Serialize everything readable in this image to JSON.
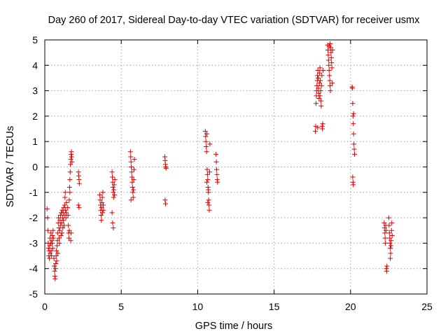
{
  "chart_data": {
    "type": "scatter",
    "title": "Day 260 of 2017, Sidereal Day-to-day VTEC variation (SDTVAR) for receiver usmx",
    "xlabel": "GPS time / hours",
    "ylabel": "SDTVAR / TECUs",
    "xlim": [
      0,
      25
    ],
    "ylim": [
      -5,
      5
    ],
    "xticks": [
      0,
      5,
      10,
      15,
      20,
      25
    ],
    "yticks": [
      -5,
      -4,
      -3,
      -2,
      -1,
      0,
      1,
      2,
      3,
      4,
      5
    ],
    "xtick_labels": [
      "0",
      "5",
      "10",
      "15",
      "20",
      "25"
    ],
    "ytick_labels": [
      "-5",
      "-4",
      "-3",
      "-2",
      "-1",
      "0",
      "1",
      "2",
      "3",
      "4",
      "5"
    ],
    "grid": true,
    "marker": "+",
    "color": "#e00000",
    "series": [
      {
        "name": "SDTVAR",
        "points": [
          [
            0.15,
            -1.65
          ],
          [
            0.18,
            -2.0
          ],
          [
            0.2,
            -2.5
          ],
          [
            0.22,
            -3.0
          ],
          [
            0.24,
            -3.2
          ],
          [
            0.26,
            -3.5
          ],
          [
            0.28,
            -3.3
          ],
          [
            0.3,
            -3.6
          ],
          [
            0.32,
            -3.1
          ],
          [
            0.34,
            -2.8
          ],
          [
            0.36,
            -3.4
          ],
          [
            0.38,
            -3.0
          ],
          [
            0.4,
            -2.6
          ],
          [
            0.42,
            -3.3
          ],
          [
            0.44,
            -3.5
          ],
          [
            0.46,
            -2.9
          ],
          [
            0.48,
            -3.0
          ],
          [
            0.5,
            -2.7
          ],
          [
            0.52,
            -3.2
          ],
          [
            0.54,
            -2.5
          ],
          [
            0.56,
            -2.8
          ],
          [
            0.6,
            -3.6
          ],
          [
            0.62,
            -3.9
          ],
          [
            0.64,
            -4.1
          ],
          [
            0.66,
            -4.3
          ],
          [
            0.68,
            -4.4
          ],
          [
            0.7,
            -4.0
          ],
          [
            0.72,
            -3.8
          ],
          [
            0.74,
            -3.5
          ],
          [
            0.76,
            -3.3
          ],
          [
            0.78,
            -3.7
          ],
          [
            0.8,
            -3.1
          ],
          [
            0.82,
            -2.9
          ],
          [
            0.84,
            -2.6
          ],
          [
            0.86,
            -3.4
          ],
          [
            0.88,
            -2.2
          ],
          [
            0.9,
            -2.0
          ],
          [
            0.92,
            -2.4
          ],
          [
            0.94,
            -2.8
          ],
          [
            0.96,
            -3.0
          ],
          [
            0.98,
            -2.5
          ],
          [
            1.0,
            -2.1
          ],
          [
            1.02,
            -1.9
          ],
          [
            1.04,
            -2.3
          ],
          [
            1.06,
            -2.7
          ],
          [
            1.08,
            -1.8
          ],
          [
            1.1,
            -2.2
          ],
          [
            1.12,
            -2.6
          ],
          [
            1.14,
            -1.7
          ],
          [
            1.16,
            -2.0
          ],
          [
            1.18,
            -2.4
          ],
          [
            1.2,
            -1.8
          ],
          [
            1.22,
            -2.1
          ],
          [
            1.24,
            -1.6
          ],
          [
            1.26,
            -2.3
          ],
          [
            1.28,
            -1.9
          ],
          [
            1.3,
            -1.5
          ],
          [
            1.32,
            -1.2
          ],
          [
            1.34,
            -1.0
          ],
          [
            1.36,
            -1.7
          ],
          [
            1.38,
            -2.0
          ],
          [
            1.4,
            -1.8
          ],
          [
            1.42,
            -1.4
          ],
          [
            1.5,
            -1.6
          ],
          [
            1.52,
            -1.9
          ],
          [
            1.54,
            -2.3
          ],
          [
            1.56,
            -2.6
          ],
          [
            1.58,
            -2.8
          ],
          [
            1.6,
            -2.5
          ],
          [
            1.62,
            -0.8
          ],
          [
            1.64,
            -0.5
          ],
          [
            1.66,
            -0.2
          ],
          [
            1.68,
            0.1
          ],
          [
            1.7,
            0.3
          ],
          [
            1.72,
            0.5
          ],
          [
            1.74,
            0.6
          ],
          [
            1.76,
            0.4
          ],
          [
            1.78,
            0.2
          ],
          [
            1.6,
            -1.3
          ],
          [
            1.64,
            -1.0
          ],
          [
            1.7,
            -2.9
          ],
          [
            1.72,
            -2.6
          ],
          [
            2.2,
            -0.2
          ],
          [
            2.22,
            -0.35
          ],
          [
            2.24,
            -0.5
          ],
          [
            2.26,
            -0.65
          ],
          [
            2.2,
            -1.5
          ],
          [
            2.24,
            -1.6
          ],
          [
            3.6,
            -1.1
          ],
          [
            3.62,
            -1.3
          ],
          [
            3.64,
            -1.5
          ],
          [
            3.66,
            -1.7
          ],
          [
            3.68,
            -1.9
          ],
          [
            3.7,
            -2.1
          ],
          [
            3.72,
            -1.6
          ],
          [
            3.74,
            -1.4
          ],
          [
            3.76,
            -1.2
          ],
          [
            3.78,
            -1.8
          ],
          [
            3.8,
            -1.0
          ],
          [
            3.82,
            -1.5
          ],
          [
            3.84,
            -1.7
          ],
          [
            4.4,
            -0.2
          ],
          [
            4.42,
            -0.4
          ],
          [
            4.44,
            -0.6
          ],
          [
            4.46,
            -0.8
          ],
          [
            4.48,
            -1.0
          ],
          [
            4.5,
            -1.2
          ],
          [
            4.52,
            -0.9
          ],
          [
            4.54,
            -0.7
          ],
          [
            4.56,
            -1.1
          ],
          [
            4.58,
            -0.5
          ],
          [
            4.4,
            -1.8
          ],
          [
            4.44,
            -2.2
          ],
          [
            4.48,
            -2.4
          ],
          [
            5.6,
            0.6
          ],
          [
            5.62,
            0.4
          ],
          [
            5.64,
            0.2
          ],
          [
            5.66,
            0.0
          ],
          [
            5.68,
            -0.2
          ],
          [
            5.7,
            -0.4
          ],
          [
            5.72,
            -0.6
          ],
          [
            5.74,
            -0.8
          ],
          [
            5.76,
            -1.0
          ],
          [
            5.78,
            -1.2
          ],
          [
            5.8,
            -0.9
          ],
          [
            5.82,
            -0.5
          ],
          [
            5.84,
            -0.1
          ],
          [
            5.86,
            0.3
          ],
          [
            5.64,
            -1.3
          ],
          [
            7.85,
            0.4
          ],
          [
            7.87,
            0.25
          ],
          [
            7.89,
            0.1
          ],
          [
            7.91,
            0.0
          ],
          [
            7.93,
            -0.05
          ],
          [
            7.87,
            -1.3
          ],
          [
            7.9,
            -1.45
          ],
          [
            10.5,
            1.4
          ],
          [
            10.52,
            1.2
          ],
          [
            10.54,
            1.0
          ],
          [
            10.56,
            0.8
          ],
          [
            10.58,
            0.6
          ],
          [
            10.6,
            1.3
          ],
          [
            10.62,
            -0.1
          ],
          [
            10.64,
            -0.3
          ],
          [
            10.66,
            -0.5
          ],
          [
            10.68,
            -0.8
          ],
          [
            10.7,
            -1.0
          ],
          [
            10.72,
            -1.3
          ],
          [
            10.74,
            -1.5
          ],
          [
            10.76,
            -1.7
          ],
          [
            10.78,
            -0.2
          ],
          [
            10.8,
            0.9
          ],
          [
            10.6,
            -0.6
          ],
          [
            10.66,
            -1.4
          ],
          [
            10.7,
            -0.9
          ],
          [
            11.2,
            0.5
          ],
          [
            11.22,
            0.2
          ],
          [
            11.24,
            -0.1
          ],
          [
            11.26,
            -0.3
          ],
          [
            11.28,
            -0.5
          ],
          [
            11.3,
            -0.6
          ],
          [
            17.7,
            1.4
          ],
          [
            17.72,
            1.6
          ],
          [
            17.74,
            2.5
          ],
          [
            17.76,
            2.8
          ],
          [
            17.78,
            3.0
          ],
          [
            17.8,
            3.2
          ],
          [
            17.82,
            3.4
          ],
          [
            17.84,
            3.6
          ],
          [
            17.86,
            3.8
          ],
          [
            17.88,
            3.5
          ],
          [
            17.9,
            3.1
          ],
          [
            17.92,
            2.9
          ],
          [
            17.94,
            2.7
          ],
          [
            17.96,
            3.3
          ],
          [
            17.98,
            3.7
          ],
          [
            18.0,
            3.9
          ],
          [
            18.02,
            3.4
          ],
          [
            18.04,
            3.0
          ],
          [
            18.06,
            2.6
          ],
          [
            18.08,
            2.4
          ],
          [
            18.1,
            3.2
          ],
          [
            18.12,
            3.6
          ],
          [
            18.14,
            1.6
          ],
          [
            18.16,
            1.5
          ],
          [
            18.18,
            1.7
          ],
          [
            18.2,
            3.8
          ],
          [
            17.85,
            1.55
          ],
          [
            18.0,
            2.8
          ],
          [
            18.5,
            4.8
          ],
          [
            18.52,
            4.6
          ],
          [
            18.54,
            4.4
          ],
          [
            18.56,
            4.2
          ],
          [
            18.58,
            4.0
          ],
          [
            18.6,
            3.8
          ],
          [
            18.62,
            3.6
          ],
          [
            18.64,
            3.4
          ],
          [
            18.66,
            3.2
          ],
          [
            18.68,
            3.0
          ],
          [
            18.7,
            4.7
          ],
          [
            18.72,
            4.5
          ],
          [
            18.74,
            4.3
          ],
          [
            18.76,
            4.1
          ],
          [
            18.78,
            3.9
          ],
          [
            18.8,
            3.3
          ],
          [
            18.82,
            4.6
          ],
          [
            18.6,
            4.75
          ],
          [
            18.66,
            4.85
          ],
          [
            20.1,
            3.15
          ],
          [
            20.12,
            3.1
          ],
          [
            20.14,
            2.5
          ],
          [
            20.16,
            2.0
          ],
          [
            20.18,
            1.7
          ],
          [
            20.2,
            1.3
          ],
          [
            20.22,
            0.9
          ],
          [
            20.24,
            0.7
          ],
          [
            20.26,
            0.5
          ],
          [
            20.14,
            -0.4
          ],
          [
            20.16,
            -0.6
          ],
          [
            20.18,
            -0.7
          ],
          [
            20.2,
            2.1
          ],
          [
            22.2,
            -2.2
          ],
          [
            22.22,
            -2.4
          ],
          [
            22.24,
            -2.6
          ],
          [
            22.26,
            -2.8
          ],
          [
            22.28,
            -3.0
          ],
          [
            22.3,
            -2.3
          ],
          [
            22.32,
            -2.5
          ],
          [
            22.34,
            -4.0
          ],
          [
            22.36,
            -4.1
          ],
          [
            22.38,
            -3.9
          ],
          [
            22.5,
            -2.0
          ],
          [
            22.52,
            -2.3
          ],
          [
            22.54,
            -2.6
          ],
          [
            22.56,
            -2.8
          ],
          [
            22.58,
            -3.0
          ],
          [
            22.6,
            -3.2
          ],
          [
            22.62,
            -3.4
          ],
          [
            22.64,
            -3.1
          ],
          [
            22.66,
            -2.9
          ],
          [
            22.68,
            -2.5
          ],
          [
            22.7,
            -2.2
          ],
          [
            22.72,
            -2.7
          ],
          [
            22.6,
            -3.6
          ]
        ]
      }
    ]
  }
}
